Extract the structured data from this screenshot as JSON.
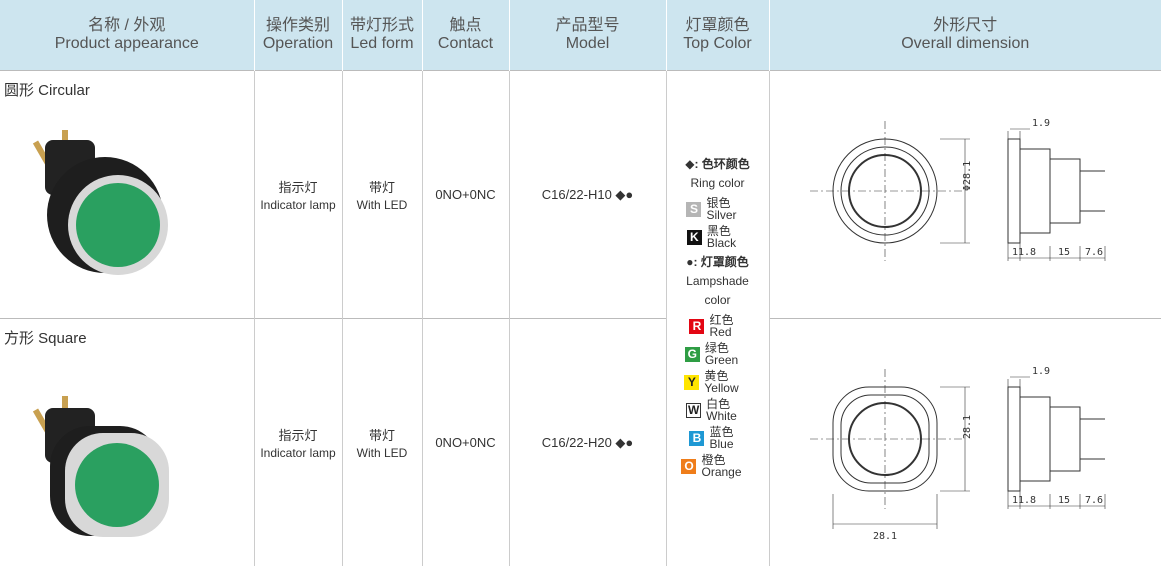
{
  "header": {
    "columns": [
      {
        "zh": "名称 / 外观",
        "en": "Product appearance"
      },
      {
        "zh": "操作类别",
        "en": "Operation"
      },
      {
        "zh": "带灯形式",
        "en": "Led form"
      },
      {
        "zh": "触点",
        "en": "Contact"
      },
      {
        "zh": "产品型号",
        "en": "Model"
      },
      {
        "zh": "灯罩颜色",
        "en": "Top Color"
      },
      {
        "zh": "外形尺寸",
        "en": "Overall dimension"
      }
    ]
  },
  "rows": [
    {
      "name": "圆形 Circular",
      "operation_zh": "指示灯",
      "operation_en": "Indicator lamp",
      "led_zh": "带灯",
      "led_en": "With LED",
      "contact": "0NO+0NC",
      "model": "C16/22-H10 ◆●",
      "dimensions": {
        "top": "1.9",
        "height": "Φ28.1",
        "bottom": [
          "11.8",
          "15",
          "7.6"
        ]
      }
    },
    {
      "name": "方形 Square",
      "operation_zh": "指示灯",
      "operation_en": "Indicator lamp",
      "led_zh": "带灯",
      "led_en": "With LED",
      "contact": "0NO+0NC",
      "model": "C16/22-H20 ◆●",
      "dimensions": {
        "top": "1.9",
        "height": "28.1",
        "bottom": [
          "11.8",
          "15",
          "7.6"
        ],
        "width": "28.1"
      }
    }
  ],
  "top_color": {
    "ring_title": "◆: 色环颜色",
    "ring_en": "Ring color",
    "ring": [
      {
        "letter": "S",
        "zh": "银色",
        "en": "Silver"
      },
      {
        "letter": "K",
        "zh": "黑色",
        "en": "Black"
      }
    ],
    "lamp_title": "●: 灯罩颜色",
    "lamp_en": "Lampshade color",
    "lamp": [
      {
        "letter": "R",
        "zh": "红色",
        "en": "Red"
      },
      {
        "letter": "G",
        "zh": "绿色",
        "en": "Green"
      },
      {
        "letter": "Y",
        "zh": "黄色",
        "en": "Yellow"
      },
      {
        "letter": "W",
        "zh": "白色",
        "en": "White"
      },
      {
        "letter": "B",
        "zh": "蓝色",
        "en": "Blue"
      },
      {
        "letter": "O",
        "zh": "橙色",
        "en": "Orange"
      }
    ]
  }
}
